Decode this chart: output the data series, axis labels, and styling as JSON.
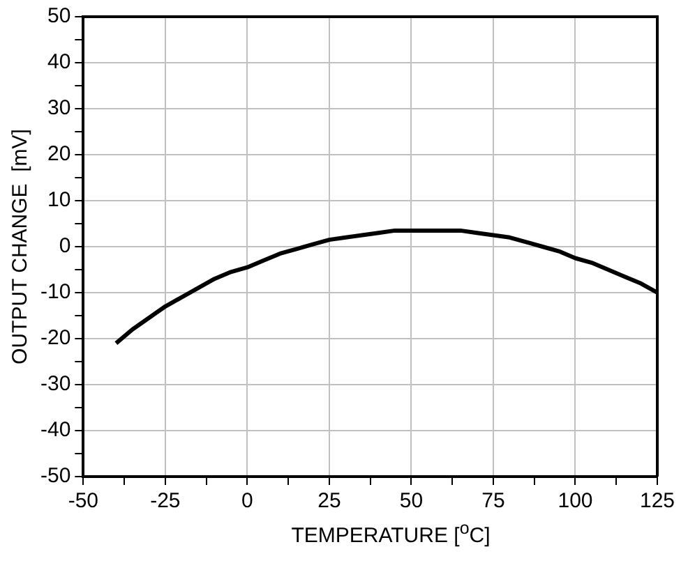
{
  "chart_data": {
    "type": "line",
    "xlabel": "TEMPERATURE [$^{o}$C]",
    "ylabel": "OUTPUT CHANGE  [mV]",
    "x": [
      -40,
      -35,
      -30,
      -25,
      -20,
      -15,
      -10,
      -5,
      0,
      5,
      10,
      15,
      20,
      25,
      30,
      35,
      40,
      45,
      50,
      55,
      60,
      65,
      70,
      75,
      80,
      85,
      90,
      95,
      100,
      105,
      110,
      115,
      120,
      125
    ],
    "series": [
      {
        "color": "#000000",
        "values": [
          -21,
          -18,
          -15.5,
          -13,
          -11,
          -9,
          -7,
          -5.5,
          -4.5,
          -3,
          -1.5,
          -0.5,
          0.5,
          1.5,
          2,
          2.5,
          3,
          3.5,
          3.5,
          3.5,
          3.5,
          3.5,
          3,
          2.5,
          2,
          1,
          0,
          -1,
          -2.5,
          -3.5,
          -5,
          -6.5,
          -8,
          -10
        ]
      }
    ],
    "xlim": [
      -50,
      125
    ],
    "xticks": [
      -50,
      {
        "value": -37.5,
        "label": null
      },
      -25,
      {
        "value": -12.5,
        "label": null
      },
      0,
      {
        "value": 12.5,
        "label": null
      },
      25,
      {
        "value": 37.5,
        "label": null
      },
      50,
      {
        "value": 62.5,
        "label": null
      },
      75,
      {
        "value": 87.5,
        "label": null
      },
      100,
      {
        "value": 112.5,
        "label": null
      },
      125
    ],
    "ylim": [
      -50,
      50
    ],
    "yticks": [
      -50,
      {
        "value": -45,
        "label": null
      },
      -40,
      {
        "value": -35,
        "label": null
      },
      -30,
      {
        "value": -25,
        "label": null
      },
      -20,
      {
        "value": -15,
        "label": null
      },
      -10,
      {
        "value": -5,
        "label": null
      },
      0,
      {
        "value": 5,
        "label": null
      },
      10,
      {
        "value": 15,
        "label": null
      },
      20,
      {
        "value": 25,
        "label": null
      },
      30,
      {
        "value": 35,
        "label": null
      },
      40,
      {
        "value": 45,
        "label": null
      },
      50
    ],
    "grid": true,
    "legend": false,
    "marker": "none",
    "line_style": "solid"
  }
}
